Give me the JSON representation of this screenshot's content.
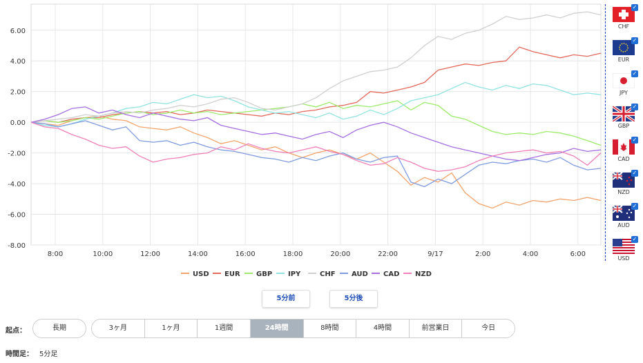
{
  "chart_data": {
    "type": "line",
    "x_labels": [
      "8:00",
      "10:00",
      "12:00",
      "14:00",
      "16:00",
      "18:00",
      "20:00",
      "22:00",
      "9/17",
      "2:00",
      "4:00",
      "6:00"
    ],
    "y_ticks": [
      "6.00",
      "4.00",
      "2.00",
      "0.00",
      "-2.00",
      "-4.00",
      "-6.00",
      "-8.00"
    ],
    "ylim": [
      -8,
      7.7
    ],
    "grid": true,
    "legend_position": "bottom",
    "series": [
      {
        "name": "USD",
        "color": "#f2a36b",
        "values": [
          0,
          -0.1,
          -0.2,
          0.1,
          0.3,
          0.4,
          0.2,
          0.1,
          -0.3,
          -0.4,
          -0.5,
          -0.3,
          -0.7,
          -1.0,
          -1.4,
          -1.2,
          -1.5,
          -1.8,
          -1.6,
          -2.0,
          -2.3,
          -2.0,
          -1.8,
          -2.1,
          -2.4,
          -2.0,
          -2.6,
          -3.2,
          -4.1,
          -3.6,
          -3.9,
          -3.3,
          -4.6,
          -5.3,
          -5.6,
          -5.2,
          -5.4,
          -5.1,
          -5.2,
          -5.0,
          -5.1,
          -4.9,
          -5.1
        ]
      },
      {
        "name": "EUR",
        "color": "#e2685a",
        "values": [
          0,
          0.1,
          0,
          0.2,
          0.3,
          0.3,
          0.5,
          0.6,
          0.7,
          0.6,
          0.7,
          0.5,
          0.6,
          0.8,
          0.7,
          0.6,
          0.5,
          0.4,
          0.6,
          0.5,
          0.7,
          0.8,
          1.0,
          1.1,
          1.3,
          2.0,
          1.9,
          2.1,
          2.3,
          2.6,
          3.4,
          3.6,
          3.8,
          3.7,
          3.9,
          4.0,
          4.9,
          4.6,
          4.4,
          4.2,
          4.4,
          4.3,
          4.5
        ]
      },
      {
        "name": "GBP",
        "color": "#9cea6a",
        "values": [
          0,
          0.1,
          0,
          0.1,
          0.3,
          0.2,
          0.4,
          0.6,
          0.7,
          0.5,
          0.6,
          0.8,
          0.6,
          0.7,
          0.5,
          0.6,
          0.7,
          0.8,
          0.9,
          1.0,
          1.2,
          1.0,
          1.3,
          0.9,
          1.1,
          1.0,
          1.2,
          1.4,
          0.8,
          1.3,
          1.1,
          0.4,
          0.2,
          -0.2,
          -0.6,
          -0.8,
          -0.7,
          -0.8,
          -0.6,
          -0.7,
          -0.9,
          -1.2,
          -1.5
        ]
      },
      {
        "name": "JPY",
        "color": "#8fe3e0",
        "values": [
          0,
          -0.2,
          -0.3,
          -0.1,
          0.2,
          0.4,
          0.6,
          0.9,
          1.0,
          1.3,
          1.2,
          1.5,
          1.8,
          1.6,
          1.7,
          1.4,
          1.0,
          0.8,
          0.6,
          0.7,
          0.5,
          0.3,
          0.6,
          0.2,
          0.4,
          0.8,
          0.5,
          0.9,
          1.4,
          1.6,
          1.8,
          2.2,
          2.6,
          2.3,
          2.1,
          2.4,
          2.2,
          2.5,
          2.4,
          2.1,
          1.8,
          1.9,
          1.8
        ]
      },
      {
        "name": "CHF",
        "color": "#cfcfcf",
        "values": [
          0,
          0.1,
          0.2,
          0.3,
          0.5,
          0.4,
          0.6,
          0.7,
          0.6,
          0.8,
          0.9,
          1.1,
          1.0,
          1.2,
          1.5,
          1.6,
          1.3,
          0.9,
          0.8,
          1.0,
          1.2,
          1.6,
          2.2,
          2.7,
          3.0,
          3.3,
          3.4,
          3.6,
          4.2,
          5.0,
          5.6,
          5.4,
          5.8,
          6.0,
          6.4,
          6.9,
          6.7,
          6.8,
          7.0,
          6.8,
          7.1,
          7.2,
          7.0
        ]
      },
      {
        "name": "AUD",
        "color": "#7d9bde",
        "values": [
          0,
          -0.1,
          -0.3,
          -0.1,
          0.1,
          -0.2,
          -0.5,
          -0.3,
          -1.2,
          -1.3,
          -1.2,
          -1.5,
          -1.3,
          -1.6,
          -1.8,
          -1.9,
          -2.1,
          -2.3,
          -2.4,
          -2.6,
          -2.3,
          -2.5,
          -2.2,
          -2.0,
          -2.4,
          -2.6,
          -2.3,
          -2.2,
          -3.9,
          -4.2,
          -3.7,
          -4.0,
          -3.4,
          -2.8,
          -2.6,
          -2.7,
          -2.5,
          -2.4,
          -2.6,
          -2.3,
          -2.8,
          -3.1,
          -3.0
        ]
      },
      {
        "name": "CAD",
        "color": "#a46de0",
        "values": [
          0,
          0.2,
          0.5,
          0.9,
          1.0,
          0.6,
          0.8,
          0.5,
          0.3,
          0.6,
          0.4,
          0.2,
          0.1,
          0.3,
          -0.2,
          -0.4,
          -0.6,
          -0.8,
          -0.7,
          -0.9,
          -1.1,
          -0.8,
          -0.6,
          -1.0,
          -0.5,
          -0.2,
          0,
          -0.3,
          -0.7,
          -1.0,
          -1.3,
          -1.6,
          -1.8,
          -2.0,
          -2.2,
          -2.4,
          -2.5,
          -2.3,
          -2.1,
          -2.0,
          -1.7,
          -1.9,
          -1.8
        ]
      },
      {
        "name": "NZD",
        "color": "#ef7fb8",
        "values": [
          0,
          -0.3,
          -0.4,
          -0.8,
          -1.1,
          -1.5,
          -1.7,
          -1.6,
          -2.2,
          -2.6,
          -2.4,
          -2.3,
          -2.1,
          -2.0,
          -1.6,
          -1.8,
          -1.4,
          -1.7,
          -1.9,
          -2.0,
          -1.8,
          -1.6,
          -1.9,
          -2.1,
          -2.5,
          -2.8,
          -2.7,
          -2.3,
          -2.6,
          -3.0,
          -3.2,
          -3.1,
          -2.9,
          -2.5,
          -2.2,
          -2.0,
          -1.9,
          -1.8,
          -2.0,
          -1.9,
          -2.2,
          -2.8,
          -2.0
        ]
      }
    ]
  },
  "currency_panel": [
    {
      "code": "CHF",
      "flag": "swiss-flag-icon",
      "checked": true
    },
    {
      "code": "EUR",
      "flag": "eu-flag-icon",
      "checked": true
    },
    {
      "code": "JPY",
      "flag": "japan-flag-icon",
      "checked": true
    },
    {
      "code": "GBP",
      "flag": "uk-flag-icon",
      "checked": true
    },
    {
      "code": "CAD",
      "flag": "canada-flag-icon",
      "checked": true
    },
    {
      "code": "NZD",
      "flag": "new-zealand-flag-icon",
      "checked": true
    },
    {
      "code": "AUD",
      "flag": "australia-flag-icon",
      "checked": true
    },
    {
      "code": "USD",
      "flag": "usa-flag-icon",
      "checked": true
    }
  ],
  "controls": {
    "prev_label": "5分前",
    "next_label": "5分後",
    "origin_label": "起点：",
    "longterm_label": "長期",
    "periods": [
      "3ヶ月",
      "1ヶ月",
      "1週間",
      "24時間",
      "8時間",
      "4時間",
      "前営業日",
      "今日"
    ],
    "active_period": "24時間",
    "timeframe_label": "時間足：",
    "timeframe_value": "5分足"
  }
}
